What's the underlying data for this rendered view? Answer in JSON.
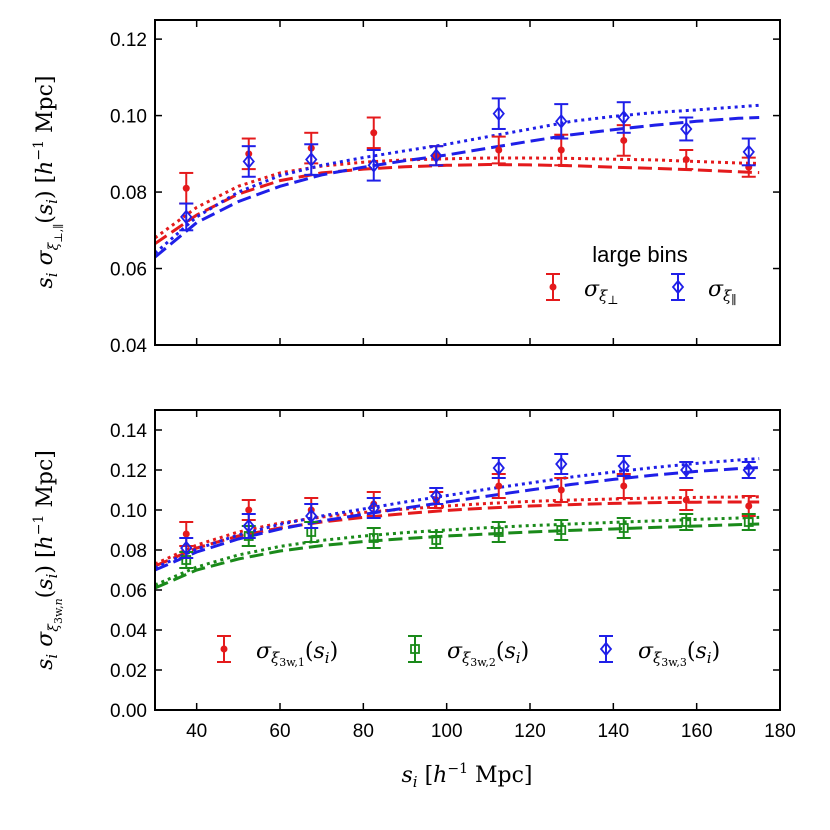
{
  "chart_data": [
    {
      "type": "scatter",
      "panel": "top",
      "ylabel": "s_i σ_ξ⊥,∥(s_i) [h⁻¹ Mpc]",
      "xlim": [
        30,
        180
      ],
      "ylim": [
        0.04,
        0.125
      ],
      "yticks": [
        0.04,
        0.06,
        0.08,
        0.1,
        0.12
      ],
      "ytick_labels": [
        "0.04",
        "0.06",
        "0.08",
        "0.10",
        "0.12"
      ],
      "legend_title": "large bins",
      "legend_position": "lower-right",
      "series": [
        {
          "name": "σ_ξ⊥",
          "color": "#e41a1c",
          "marker": "circle",
          "x": [
            37.5,
            52.5,
            67.5,
            82.5,
            97.5,
            112.5,
            127.5,
            142.5,
            157.5,
            172.5
          ],
          "y": [
            0.081,
            0.09,
            0.0915,
            0.0955,
            0.0895,
            0.091,
            0.091,
            0.0935,
            0.0885,
            0.0865
          ],
          "yerr": [
            0.004,
            0.004,
            0.004,
            0.004,
            0.0025,
            0.0035,
            0.004,
            0.004,
            0.0025,
            0.0025
          ],
          "model_dashed": {
            "x": [
              30,
              40,
              50,
              60,
              70,
              80,
              90,
              100,
              110,
              120,
              130,
              140,
              150,
              160,
              170,
              175
            ],
            "y": [
              0.0665,
              0.074,
              0.0795,
              0.083,
              0.085,
              0.086,
              0.0866,
              0.087,
              0.0872,
              0.0871,
              0.0869,
              0.0865,
              0.0862,
              0.0858,
              0.0853,
              0.0851
            ]
          },
          "model_dotted": {
            "x": [
              30,
              40,
              50,
              60,
              70,
              80,
              90,
              100,
              110,
              120,
              130,
              140,
              150,
              160,
              170,
              175
            ],
            "y": [
              0.068,
              0.076,
              0.0815,
              0.085,
              0.0868,
              0.0878,
              0.0884,
              0.0887,
              0.0889,
              0.0889,
              0.0888,
              0.0886,
              0.0884,
              0.088,
              0.0876,
              0.0875
            ]
          }
        },
        {
          "name": "σ_ξ∥",
          "color": "#1f1fe8",
          "marker": "diamond",
          "x": [
            37.5,
            52.5,
            67.5,
            82.5,
            97.5,
            112.5,
            127.5,
            142.5,
            157.5,
            172.5
          ],
          "y": [
            0.0735,
            0.088,
            0.0885,
            0.087,
            0.0895,
            0.1005,
            0.0985,
            0.0995,
            0.0965,
            0.0905
          ],
          "yerr": [
            0.0035,
            0.004,
            0.004,
            0.004,
            0.0025,
            0.004,
            0.0045,
            0.004,
            0.003,
            0.0035
          ],
          "model_dashed": {
            "x": [
              30,
              40,
              50,
              60,
              70,
              80,
              90,
              100,
              110,
              120,
              130,
              140,
              150,
              160,
              170,
              175
            ],
            "y": [
              0.063,
              0.072,
              0.0775,
              0.0815,
              0.0845,
              0.0865,
              0.0882,
              0.0897,
              0.0915,
              0.0933,
              0.095,
              0.0963,
              0.0975,
              0.0985,
              0.0993,
              0.0995
            ]
          },
          "model_dotted": {
            "x": [
              30,
              40,
              50,
              60,
              70,
              80,
              90,
              100,
              110,
              120,
              130,
              140,
              150,
              160,
              170,
              175
            ],
            "y": [
              0.064,
              0.0735,
              0.08,
              0.0843,
              0.087,
              0.089,
              0.0908,
              0.0925,
              0.0945,
              0.0965,
              0.0985,
              0.0998,
              0.1008,
              0.1015,
              0.1023,
              0.1027
            ]
          }
        }
      ]
    },
    {
      "type": "scatter",
      "panel": "bottom",
      "xlabel": "s_i [h⁻¹ Mpc]",
      "ylabel": "s_i σ_ξ3w,n(s_i) [h⁻¹ Mpc]",
      "xlim": [
        30,
        180
      ],
      "ylim": [
        0.0,
        0.15
      ],
      "xticks": [
        40,
        60,
        80,
        100,
        120,
        140,
        160,
        180
      ],
      "xtick_labels": [
        "40",
        "60",
        "80",
        "100",
        "120",
        "140",
        "160",
        "180"
      ],
      "yticks": [
        0.0,
        0.02,
        0.04,
        0.06,
        0.08,
        0.1,
        0.12,
        0.14
      ],
      "ytick_labels": [
        "0.00",
        "0.02",
        "0.04",
        "0.06",
        "0.08",
        "0.10",
        "0.12",
        "0.14"
      ],
      "legend_position": "lower-center",
      "series": [
        {
          "name": "σ_ξ3w,1(s_i)",
          "color": "#e41a1c",
          "marker": "circle",
          "x": [
            37.5,
            52.5,
            67.5,
            82.5,
            97.5,
            112.5,
            127.5,
            142.5,
            157.5,
            172.5
          ],
          "y": [
            0.088,
            0.1,
            0.1,
            0.103,
            0.105,
            0.112,
            0.11,
            0.112,
            0.105,
            0.102
          ],
          "yerr": [
            0.006,
            0.005,
            0.006,
            0.006,
            0.004,
            0.006,
            0.006,
            0.006,
            0.005,
            0.005
          ],
          "model_dashed": {
            "x": [
              30,
              40,
              50,
              60,
              70,
              80,
              90,
              100,
              110,
              120,
              130,
              140,
              150,
              160,
              170,
              175
            ],
            "y": [
              0.072,
              0.081,
              0.087,
              0.091,
              0.094,
              0.0963,
              0.0982,
              0.0998,
              0.101,
              0.102,
              0.1027,
              0.1033,
              0.1037,
              0.1039,
              0.104,
              0.104
            ]
          },
          "model_dotted": {
            "x": [
              30,
              40,
              50,
              60,
              70,
              80,
              90,
              100,
              110,
              120,
              130,
              140,
              150,
              160,
              170,
              175
            ],
            "y": [
              0.073,
              0.0825,
              0.089,
              0.0935,
              0.0965,
              0.0988,
              0.1005,
              0.102,
              0.1033,
              0.1043,
              0.105,
              0.1055,
              0.106,
              0.1063,
              0.1065,
              0.1066
            ]
          }
        },
        {
          "name": "σ_ξ3w,2(s_i)",
          "color": "#1a8a1a",
          "marker": "square",
          "x": [
            37.5,
            52.5,
            67.5,
            82.5,
            97.5,
            112.5,
            127.5,
            142.5,
            157.5,
            172.5
          ],
          "y": [
            0.075,
            0.087,
            0.089,
            0.086,
            0.085,
            0.089,
            0.09,
            0.091,
            0.094,
            0.094
          ],
          "yerr": [
            0.004,
            0.005,
            0.005,
            0.005,
            0.004,
            0.005,
            0.005,
            0.005,
            0.004,
            0.004
          ],
          "model_dashed": {
            "x": [
              30,
              40,
              50,
              60,
              70,
              80,
              90,
              100,
              110,
              120,
              130,
              140,
              150,
              160,
              170,
              175
            ],
            "y": [
              0.061,
              0.07,
              0.0755,
              0.0795,
              0.0822,
              0.0842,
              0.0857,
              0.087,
              0.088,
              0.089,
              0.0898,
              0.0905,
              0.0913,
              0.092,
              0.0927,
              0.093
            ]
          },
          "model_dotted": {
            "x": [
              30,
              40,
              50,
              60,
              70,
              80,
              90,
              100,
              110,
              120,
              130,
              140,
              150,
              160,
              170,
              175
            ],
            "y": [
              0.0625,
              0.0715,
              0.0775,
              0.0818,
              0.0848,
              0.087,
              0.0887,
              0.09,
              0.0912,
              0.0922,
              0.093,
              0.0938,
              0.0946,
              0.0953,
              0.096,
              0.0963
            ]
          }
        },
        {
          "name": "σ_ξ3w,3(s_i)",
          "color": "#1f1fe8",
          "marker": "diamond",
          "x": [
            37.5,
            52.5,
            67.5,
            82.5,
            97.5,
            112.5,
            127.5,
            142.5,
            157.5,
            172.5
          ],
          "y": [
            0.081,
            0.092,
            0.097,
            0.101,
            0.107,
            0.121,
            0.123,
            0.122,
            0.12,
            0.12
          ],
          "yerr": [
            0.005,
            0.006,
            0.006,
            0.005,
            0.004,
            0.005,
            0.005,
            0.005,
            0.004,
            0.004
          ],
          "model_dashed": {
            "x": [
              30,
              40,
              50,
              60,
              70,
              80,
              90,
              100,
              110,
              120,
              130,
              140,
              150,
              160,
              170,
              175
            ],
            "y": [
              0.07,
              0.079,
              0.0855,
              0.0905,
              0.0945,
              0.0978,
              0.101,
              0.104,
              0.107,
              0.11,
              0.1128,
              0.1153,
              0.1175,
              0.1193,
              0.1207,
              0.1212
            ]
          },
          "model_dotted": {
            "x": [
              30,
              40,
              50,
              60,
              70,
              80,
              90,
              100,
              110,
              120,
              130,
              140,
              150,
              160,
              170,
              175
            ],
            "y": [
              0.071,
              0.0805,
              0.0875,
              0.0928,
              0.097,
              0.1005,
              0.104,
              0.1072,
              0.1105,
              0.1135,
              0.1165,
              0.119,
              0.1213,
              0.1233,
              0.125,
              0.1257
            ]
          }
        }
      ]
    }
  ]
}
